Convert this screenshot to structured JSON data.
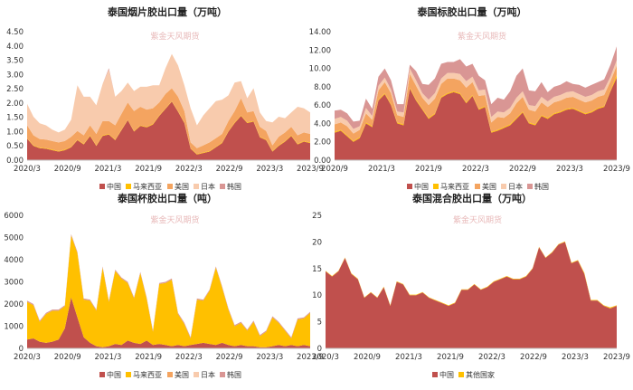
{
  "colors": {
    "china": "#c0504d",
    "malaysia": "#ffc000",
    "usa": "#f4a460",
    "japan": "#f8cbad",
    "korea": "#d99694",
    "others": "#ffc000"
  },
  "watermark": "紫金天风期货",
  "chart_data": [
    {
      "type": "area",
      "stacked": true,
      "title": "泰国烟片胶出口量（万吨）",
      "xlabel": "",
      "ylabel": "",
      "ylim": [
        0,
        4.5
      ],
      "y_ticks": [
        "0.00",
        "0.50",
        "1.00",
        "1.50",
        "2.00",
        "2.50",
        "3.00",
        "3.50",
        "4.00",
        "4.50"
      ],
      "x_ticks": [
        "2020/3",
        "2020/9",
        "2021/3",
        "2021/9",
        "2022/3",
        "2022/9",
        "2023/3",
        "2023/9"
      ],
      "legend_position": "bottom",
      "series": [
        {
          "name": "中国",
          "color_key": "china",
          "values": [
            0.75,
            0.5,
            0.42,
            0.4,
            0.35,
            0.3,
            0.35,
            0.45,
            0.7,
            0.55,
            0.85,
            0.5,
            0.85,
            0.9,
            0.7,
            1.05,
            1.4,
            1.0,
            1.2,
            1.15,
            1.25,
            1.55,
            1.8,
            2.05,
            1.7,
            1.3,
            0.4,
            0.2,
            0.25,
            0.3,
            0.45,
            0.6,
            1.0,
            1.3,
            1.55,
            1.3,
            1.35,
            0.8,
            0.7,
            0.3,
            0.5,
            0.65,
            0.85,
            0.55,
            0.65,
            0.6
          ]
        },
        {
          "name": "马来西亚",
          "color_key": "malaysia",
          "values": [
            0.02,
            0.02,
            0.02,
            0.02,
            0.02,
            0.02,
            0.02,
            0.02,
            0.02,
            0.02,
            0.02,
            0.02,
            0.02,
            0.02,
            0.02,
            0.02,
            0.02,
            0.02,
            0.02,
            0.02,
            0.02,
            0.02,
            0.02,
            0.02,
            0.02,
            0.02,
            0.02,
            0.02,
            0.02,
            0.02,
            0.02,
            0.02,
            0.02,
            0.02,
            0.02,
            0.02,
            0.02,
            0.02,
            0.02,
            0.02,
            0.02,
            0.02,
            0.02,
            0.02,
            0.02,
            0.02
          ]
        },
        {
          "name": "美国",
          "color_key": "usa",
          "values": [
            0.45,
            0.35,
            0.3,
            0.3,
            0.3,
            0.3,
            0.3,
            0.35,
            0.3,
            0.3,
            0.35,
            0.4,
            0.5,
            0.45,
            0.5,
            0.55,
            0.6,
            0.7,
            0.65,
            0.6,
            0.55,
            0.45,
            0.5,
            0.45,
            0.5,
            0.4,
            0.2,
            0.2,
            0.25,
            0.3,
            0.3,
            0.3,
            0.35,
            0.4,
            0.6,
            0.35,
            0.35,
            0.35,
            0.3,
            0.2,
            0.3,
            0.3,
            0.3,
            0.3,
            0.3,
            0.3
          ]
        },
        {
          "name": "日本",
          "color_key": "japan",
          "values": [
            0.75,
            0.65,
            0.55,
            0.5,
            0.4,
            0.35,
            0.4,
            0.6,
            1.6,
            1.35,
            1.0,
            1.0,
            1.3,
            1.8,
            1.0,
            0.8,
            0.7,
            0.7,
            0.7,
            0.8,
            0.8,
            0.6,
            0.9,
            1.2,
            1.1,
            0.9,
            1.2,
            0.8,
            1.05,
            1.2,
            1.3,
            1.2,
            0.9,
            1.0,
            0.6,
            0.5,
            0.8,
            0.5,
            0.35,
            0.8,
            0.7,
            0.5,
            0.5,
            1.0,
            0.85,
            0.75
          ]
        },
        {
          "name": "韩国",
          "color_key": "korea",
          "values": [
            0.0,
            0.0,
            0.0,
            0.0,
            0.0,
            0.0,
            0.0,
            0.0,
            0.0,
            0.0,
            0.0,
            0.0,
            0.0,
            0.05,
            0.0,
            0.0,
            0.0,
            0.0,
            0.0,
            0.0,
            0.0,
            0.0,
            0.0,
            0.0,
            0.0,
            0.0,
            0.0,
            0.0,
            0.0,
            0.0,
            0.0,
            0.0,
            0.0,
            0.0,
            0.0,
            0.0,
            0.0,
            0.0,
            0.0,
            0.0,
            0.0,
            0.0,
            0.0,
            0.0,
            0.0,
            0.0
          ]
        }
      ]
    },
    {
      "type": "area",
      "stacked": true,
      "title": "泰国标胶出口量（万吨）",
      "xlabel": "",
      "ylabel": "",
      "ylim": [
        0,
        14
      ],
      "y_ticks": [
        "0.00",
        "2.00",
        "4.00",
        "6.00",
        "8.00",
        "10.00",
        "12.00",
        "14.00"
      ],
      "x_ticks": [
        "2020/9",
        "2021/3",
        "2021/9",
        "2022/3",
        "2022/9",
        "2023/3",
        "2023/9"
      ],
      "legend_position": "bottom",
      "series": [
        {
          "name": "中国",
          "color_key": "china",
          "values": [
            3.0,
            3.2,
            2.6,
            2.0,
            2.4,
            4.0,
            3.6,
            6.5,
            7.2,
            6.0,
            4.0,
            3.8,
            7.8,
            6.5,
            5.5,
            4.5,
            5.0,
            6.8,
            7.2,
            7.4,
            7.2,
            6.2,
            7.0,
            5.5,
            5.8,
            3.0,
            3.2,
            3.5,
            3.8,
            4.5,
            5.2,
            4.0,
            3.8,
            4.8,
            4.5,
            5.0,
            5.2,
            5.5,
            5.6,
            5.3,
            5.0,
            5.2,
            5.6,
            5.8,
            7.5,
            9.0
          ]
        },
        {
          "name": "马来西亚",
          "color_key": "malaysia",
          "values": [
            0.1,
            0.1,
            0.1,
            0.1,
            0.1,
            0.1,
            0.1,
            0.1,
            0.1,
            0.1,
            0.1,
            0.1,
            0.1,
            0.1,
            0.1,
            0.1,
            0.1,
            0.1,
            0.1,
            0.1,
            0.1,
            0.1,
            0.1,
            0.1,
            0.1,
            0.1,
            0.1,
            0.1,
            0.1,
            0.1,
            0.1,
            0.1,
            0.1,
            0.1,
            0.1,
            0.1,
            0.1,
            0.1,
            0.1,
            0.1,
            0.1,
            0.1,
            0.1,
            0.1,
            0.1,
            0.3
          ]
        },
        {
          "name": "美国",
          "color_key": "usa",
          "values": [
            0.8,
            0.8,
            1.0,
            0.8,
            0.8,
            1.0,
            0.7,
            1.0,
            1.2,
            1.2,
            0.8,
            0.8,
            1.5,
            1.5,
            1.2,
            1.4,
            1.6,
            1.4,
            1.6,
            1.4,
            1.4,
            1.6,
            1.4,
            1.4,
            1.2,
            1.0,
            1.4,
            1.0,
            1.2,
            1.6,
            1.6,
            1.4,
            1.4,
            1.4,
            1.2,
            1.2,
            1.2,
            1.2,
            1.2,
            1.2,
            1.2,
            1.2,
            1.2,
            1.2,
            1.0,
            1.0
          ]
        },
        {
          "name": "日本",
          "color_key": "japan",
          "values": [
            0.6,
            0.6,
            0.6,
            0.5,
            0.4,
            0.6,
            0.4,
            0.5,
            0.5,
            0.4,
            0.4,
            0.5,
            0.6,
            0.6,
            0.5,
            0.6,
            0.6,
            0.6,
            0.6,
            0.6,
            0.7,
            0.7,
            0.6,
            0.6,
            0.6,
            0.6,
            0.6,
            0.6,
            0.6,
            0.6,
            0.6,
            0.5,
            0.6,
            0.6,
            0.6,
            0.6,
            0.6,
            0.6,
            0.6,
            0.6,
            0.6,
            0.6,
            0.6,
            0.6,
            0.5,
            0.6
          ]
        },
        {
          "name": "韩国",
          "color_key": "korea",
          "values": [
            0.9,
            0.8,
            0.8,
            0.8,
            0.6,
            1.0,
            0.8,
            1.0,
            1.0,
            1.0,
            0.8,
            0.9,
            0.4,
            1.0,
            1.0,
            1.6,
            1.6,
            1.6,
            1.2,
            1.2,
            1.6,
            1.6,
            1.4,
            1.6,
            1.0,
            1.4,
            1.5,
            1.4,
            1.8,
            2.4,
            2.5,
            1.6,
            1.6,
            1.6,
            1.0,
            1.1,
            1.1,
            1.2,
            0.8,
            1.0,
            1.0,
            1.1,
            1.0,
            1.1,
            1.3,
            1.5
          ]
        }
      ]
    },
    {
      "type": "area",
      "stacked": true,
      "title": "泰国杯胶出口量（吨）",
      "xlabel": "",
      "ylabel": "",
      "ylim": [
        0,
        6000
      ],
      "y_ticks": [
        "0",
        "1000",
        "2000",
        "3000",
        "4000",
        "5000",
        "6000"
      ],
      "x_ticks": [
        "2020/3",
        "2020/9",
        "2021/3",
        "2021/9",
        "2022/3",
        "2022/9",
        "2023/3",
        "2023/9"
      ],
      "legend_position": "bottom",
      "series": [
        {
          "name": "中国",
          "color_key": "china",
          "values": [
            400,
            450,
            300,
            250,
            300,
            400,
            900,
            2300,
            1400,
            500,
            250,
            100,
            50,
            100,
            200,
            150,
            350,
            250,
            200,
            350,
            150,
            200,
            150,
            100,
            150,
            100,
            150,
            200,
            250,
            200,
            150,
            250,
            150,
            100,
            150,
            100,
            100,
            50,
            50,
            100,
            150,
            100,
            150,
            100,
            150,
            100
          ]
        },
        {
          "name": "马来西亚",
          "color_key": "malaysia",
          "values": [
            1700,
            1500,
            900,
            1300,
            1400,
            1300,
            1000,
            2800,
            2900,
            1700,
            1900,
            1600,
            3600,
            2000,
            3300,
            3000,
            2600,
            2000,
            3200,
            1900,
            600,
            2700,
            2800,
            3000,
            1400,
            1000,
            300,
            2000,
            1900,
            2400,
            3500,
            2500,
            1600,
            900,
            1000,
            700,
            1100,
            500,
            700,
            1300,
            1000,
            700,
            300,
            1200,
            1200,
            1500
          ]
        },
        {
          "name": "美国",
          "color_key": "usa",
          "values": [
            0,
            0,
            0,
            0,
            0,
            0,
            0,
            0,
            0,
            0,
            0,
            0,
            0,
            0,
            0,
            0,
            0,
            0,
            0,
            0,
            0,
            0,
            0,
            0,
            0,
            0,
            0,
            0,
            0,
            0,
            0,
            0,
            0,
            0,
            0,
            0,
            0,
            0,
            0,
            0,
            0,
            0,
            0,
            0,
            0,
            0
          ]
        },
        {
          "name": "日本",
          "color_key": "japan",
          "values": [
            0,
            0,
            0,
            0,
            0,
            0,
            0,
            0,
            0,
            0,
            0,
            0,
            0,
            0,
            0,
            0,
            0,
            0,
            0,
            0,
            0,
            0,
            0,
            0,
            0,
            0,
            0,
            0,
            0,
            0,
            0,
            0,
            0,
            0,
            0,
            0,
            0,
            0,
            0,
            0,
            0,
            0,
            0,
            0,
            0,
            0
          ]
        },
        {
          "name": "韩国",
          "color_key": "korea",
          "values": [
            50,
            50,
            50,
            50,
            50,
            50,
            50,
            50,
            50,
            50,
            50,
            50,
            50,
            50,
            50,
            50,
            50,
            50,
            50,
            50,
            50,
            50,
            50,
            50,
            50,
            50,
            50,
            50,
            50,
            50,
            50,
            50,
            50,
            50,
            50,
            50,
            50,
            50,
            50,
            50,
            50,
            50,
            50,
            50,
            50,
            50
          ]
        }
      ]
    },
    {
      "type": "area",
      "stacked": true,
      "title": "泰国混合胶出口量（万吨）",
      "xlabel": "",
      "ylabel": "",
      "ylim": [
        0,
        25
      ],
      "y_ticks": [
        "0",
        "5",
        "10",
        "15",
        "20",
        "25"
      ],
      "x_ticks": [
        "2020/3",
        "2020/9",
        "2021/3",
        "2021/9",
        "2022/3",
        "2022/9",
        "2023/3",
        "2023/9"
      ],
      "legend_position": "bottom",
      "series": [
        {
          "name": "中国",
          "color_key": "china",
          "values": [
            14.5,
            13.5,
            14.5,
            17.0,
            14.0,
            13.0,
            9.5,
            10.5,
            9.5,
            11.5,
            8.0,
            12.5,
            12.0,
            10.0,
            10.0,
            10.5,
            9.5,
            9.0,
            8.5,
            8.0,
            8.5,
            11.0,
            11.0,
            12.0,
            11.0,
            11.5,
            12.5,
            13.0,
            13.5,
            13.0,
            13.0,
            13.5,
            15.0,
            19.0,
            17.0,
            18.0,
            19.5,
            20.0,
            16.0,
            16.5,
            14.0,
            9.0,
            9.0,
            8.0,
            7.5,
            8.0
          ]
        },
        {
          "name": "其他国家",
          "color_key": "others",
          "values": [
            0.1,
            0.1,
            0.1,
            0.1,
            0.1,
            0.1,
            0.1,
            0.1,
            0.1,
            0.1,
            0.1,
            0.1,
            0.1,
            0.1,
            0.1,
            0.1,
            0.1,
            0.1,
            0.1,
            0.1,
            0.1,
            0.1,
            0.1,
            0.1,
            0.1,
            0.1,
            0.1,
            0.1,
            0.1,
            0.1,
            0.1,
            0.1,
            0.1,
            0.1,
            0.1,
            0.1,
            0.1,
            0.1,
            0.1,
            0.1,
            0.2,
            0.1,
            0.1,
            0.1,
            0.2,
            0.1
          ]
        }
      ]
    }
  ]
}
